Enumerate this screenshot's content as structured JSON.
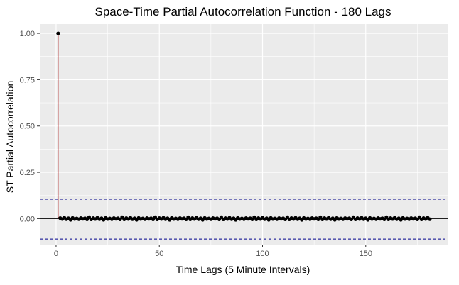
{
  "chart_data": {
    "type": "lollipop",
    "title": "Space-Time Partial Autocorrelation Function - 180 Lags",
    "xlabel": "Time Lags (5 Minute Intervals)",
    "ylabel": "ST Partial Autocorrelation",
    "xlim": [
      -7.9,
      190
    ],
    "ylim": [
      -0.14,
      1.05
    ],
    "x_ticks": [
      0,
      50,
      100,
      150
    ],
    "x_tick_labels": [
      "0",
      "50",
      "100",
      "150"
    ],
    "y_ticks": [
      0,
      0.25,
      0.5,
      0.75,
      1
    ],
    "y_tick_labels": [
      "0.00",
      "0.25",
      "0.50",
      "0.75",
      "1.00"
    ],
    "lag_range": [
      1,
      181
    ],
    "lag0_value": 1.0,
    "lag_values_near": 0.0,
    "lag_value_noise": [
      0.008,
      -0.004,
      0.003,
      -0.002,
      0.005,
      -0.003,
      0.002,
      -0.006,
      0.004,
      -0.002,
      0.001,
      -0.003,
      0.003,
      -0.001,
      0.002,
      -0.004
    ],
    "confidence_bounds": [
      0.105,
      -0.11
    ],
    "grid": true,
    "colors": {
      "panel": "#ebebeb",
      "grid": "#ffffff",
      "stem": "#b22222",
      "point": "#000000",
      "zero_line": "#000000",
      "bounds": "#00008b"
    }
  }
}
